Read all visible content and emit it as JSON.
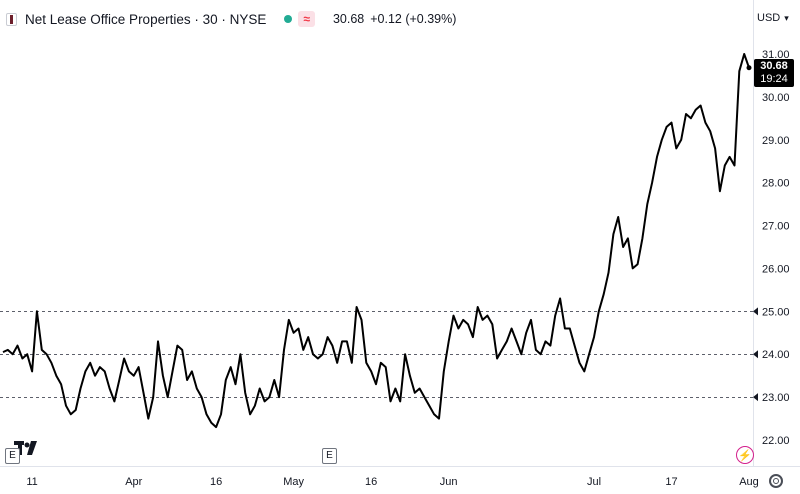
{
  "header": {
    "title": "Net Lease Office Properties · 30 · NYSE",
    "delay_badge": "≈",
    "price": "30.68",
    "change": "+0.12 (+0.39%)"
  },
  "currency": {
    "label": "USD"
  },
  "price_label": {
    "price": "30.68",
    "countdown": "19:24"
  },
  "badges": {
    "earnings": "E"
  },
  "icons": {
    "logo": "company-logo-icon",
    "status": "market-status-dot-icon",
    "tv": "tradingview-logo-icon",
    "bolt": "lightning-icon",
    "settings": "gear-icon"
  },
  "colors": {
    "line": "#000000",
    "text": "#131722",
    "grid_dashed": "#5d606b",
    "badge_bg": "#fbe0e6",
    "badge_fg": "#f23645",
    "status_dot": "#22ab94"
  },
  "chart_data": {
    "type": "line",
    "title": "",
    "xlabel": "",
    "ylabel": "",
    "ylim": [
      21.6,
      31.2
    ],
    "grid": false,
    "dashed_levels": [
      23,
      24,
      25
    ],
    "y_ticks": [
      "22.00",
      "23.00",
      "24.00",
      "25.00",
      "26.00",
      "27.00",
      "28.00",
      "29.00",
      "30.00",
      "31.00"
    ],
    "y_tick_values": [
      22,
      23,
      24,
      25,
      26,
      27,
      28,
      29,
      30,
      31
    ],
    "x_ticks": [
      "11",
      "Apr",
      "16",
      "May",
      "16",
      "Jun",
      "Jul",
      "17",
      "Aug"
    ],
    "x_tick_index": [
      6,
      27,
      44,
      60,
      76,
      92,
      122,
      138,
      154
    ],
    "series": [
      {
        "values": [
          24.05,
          24.1,
          24.0,
          24.2,
          23.9,
          24.0,
          23.6,
          25.0,
          24.1,
          24.0,
          23.8,
          23.5,
          23.3,
          22.8,
          22.6,
          22.7,
          23.2,
          23.6,
          23.8,
          23.5,
          23.7,
          23.6,
          23.2,
          22.9,
          23.4,
          23.9,
          23.6,
          23.5,
          23.7,
          23.1,
          22.5,
          23.0,
          24.3,
          23.5,
          23.0,
          23.6,
          24.2,
          24.1,
          23.4,
          23.6,
          23.2,
          23.0,
          22.6,
          22.4,
          22.3,
          22.6,
          23.4,
          23.7,
          23.3,
          24.0,
          23.1,
          22.6,
          22.8,
          23.2,
          22.9,
          23.0,
          23.4,
          23.0,
          24.1,
          24.8,
          24.5,
          24.6,
          24.1,
          24.4,
          24.0,
          23.9,
          24.0,
          24.4,
          24.2,
          23.8,
          24.3,
          24.3,
          23.8,
          25.1,
          24.8,
          23.8,
          23.6,
          23.3,
          23.8,
          23.7,
          22.9,
          23.2,
          22.9,
          24.0,
          23.5,
          23.1,
          23.2,
          23.0,
          22.8,
          22.6,
          22.5,
          23.6,
          24.3,
          24.9,
          24.6,
          24.8,
          24.7,
          24.4,
          25.1,
          24.8,
          24.9,
          24.7,
          23.9,
          24.1,
          24.3,
          24.6,
          24.3,
          24.0,
          24.5,
          24.8,
          24.1,
          24.0,
          24.3,
          24.2,
          24.9,
          25.3,
          24.6,
          24.6,
          24.2,
          23.8,
          23.6,
          24.0,
          24.4,
          25.0,
          25.4,
          25.9,
          26.8,
          27.2,
          26.5,
          26.7,
          26.0,
          26.1,
          26.7,
          27.5,
          28.0,
          28.6,
          29.0,
          29.3,
          29.4,
          28.8,
          29.0,
          29.6,
          29.5,
          29.7,
          29.8,
          29.4,
          29.2,
          28.8,
          27.8,
          28.4,
          28.6,
          28.4,
          30.6,
          31.0,
          30.68
        ]
      }
    ]
  }
}
